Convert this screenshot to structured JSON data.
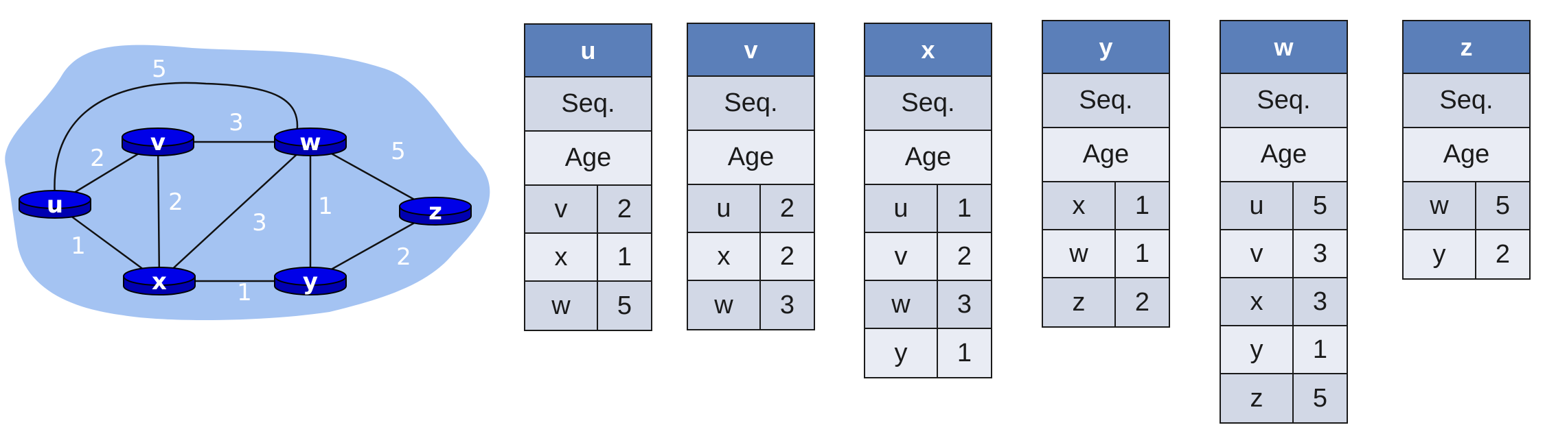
{
  "colors": {
    "cloud": "#a4c3f2",
    "router_fill": "#0000e8",
    "router_side": "#0000b0",
    "header": "#5b7fb9",
    "row_dark": "#d2d8e6",
    "row_light": "#e9ecf4",
    "edge": "#111111"
  },
  "network": {
    "routers": [
      {
        "id": "u",
        "label": "u"
      },
      {
        "id": "v",
        "label": "v"
      },
      {
        "id": "w",
        "label": "w"
      },
      {
        "id": "x",
        "label": "x"
      },
      {
        "id": "y",
        "label": "y"
      },
      {
        "id": "z",
        "label": "z"
      }
    ],
    "links": [
      {
        "id": "u-w",
        "cost": "5"
      },
      {
        "id": "u-v",
        "cost": "2"
      },
      {
        "id": "u-x",
        "cost": "1"
      },
      {
        "id": "v-w",
        "cost": "3"
      },
      {
        "id": "v-x",
        "cost": "2"
      },
      {
        "id": "x-w",
        "cost": "3"
      },
      {
        "id": "x-y",
        "cost": "1"
      },
      {
        "id": "w-y",
        "cost": "1"
      },
      {
        "id": "w-z",
        "cost": "5"
      },
      {
        "id": "y-z",
        "cost": "2"
      }
    ]
  },
  "tables": [
    {
      "router": "u",
      "seq_label": "Seq.",
      "age_label": "Age",
      "entries": [
        {
          "neighbor": "v",
          "cost": "2"
        },
        {
          "neighbor": "x",
          "cost": "1"
        },
        {
          "neighbor": "w",
          "cost": "5"
        }
      ]
    },
    {
      "router": "v",
      "seq_label": "Seq.",
      "age_label": "Age",
      "entries": [
        {
          "neighbor": "u",
          "cost": "2"
        },
        {
          "neighbor": "x",
          "cost": "2"
        },
        {
          "neighbor": "w",
          "cost": "3"
        }
      ]
    },
    {
      "router": "x",
      "seq_label": "Seq.",
      "age_label": "Age",
      "entries": [
        {
          "neighbor": "u",
          "cost": "1"
        },
        {
          "neighbor": "v",
          "cost": "2"
        },
        {
          "neighbor": "w",
          "cost": "3"
        },
        {
          "neighbor": "y",
          "cost": "1"
        }
      ]
    },
    {
      "router": "y",
      "seq_label": "Seq.",
      "age_label": "Age",
      "entries": [
        {
          "neighbor": "x",
          "cost": "1"
        },
        {
          "neighbor": "w",
          "cost": "1"
        },
        {
          "neighbor": "z",
          "cost": "2"
        }
      ]
    },
    {
      "router": "w",
      "seq_label": "Seq.",
      "age_label": "Age",
      "entries": [
        {
          "neighbor": "u",
          "cost": "5"
        },
        {
          "neighbor": "v",
          "cost": "3"
        },
        {
          "neighbor": "x",
          "cost": "3"
        },
        {
          "neighbor": "y",
          "cost": "1"
        },
        {
          "neighbor": "z",
          "cost": "5"
        }
      ]
    },
    {
      "router": "z",
      "seq_label": "Seq.",
      "age_label": "Age",
      "entries": [
        {
          "neighbor": "w",
          "cost": "5"
        },
        {
          "neighbor": "y",
          "cost": "2"
        }
      ]
    }
  ]
}
